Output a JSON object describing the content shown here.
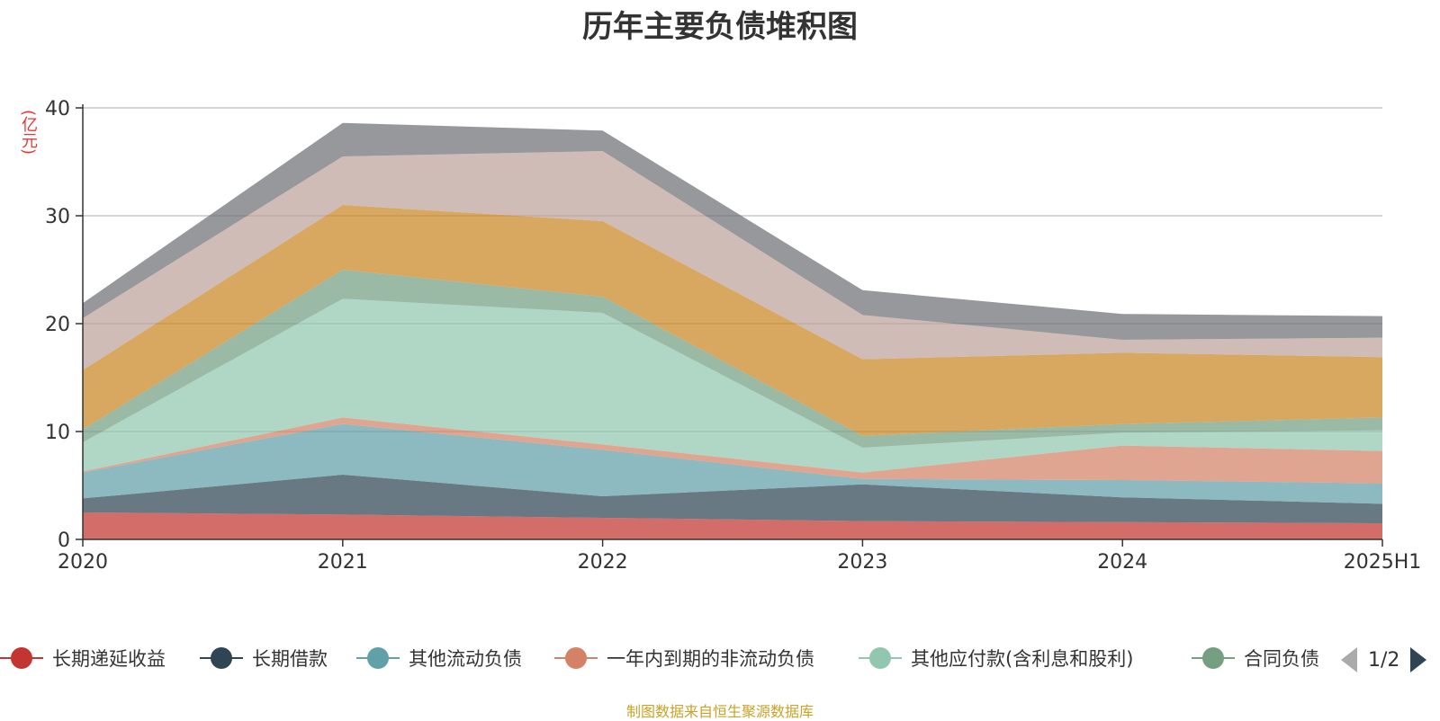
{
  "chart_data": {
    "type": "area",
    "title": "历年主要负债堆积图",
    "unit": "(亿元)",
    "x": [
      "2020",
      "2021",
      "2022",
      "2023",
      "2024",
      "2025H1"
    ],
    "yticks": [
      "0",
      "10",
      "20",
      "30",
      "40"
    ],
    "ylim": [
      0,
      40
    ],
    "grid": true,
    "stacked": true,
    "series": [
      {
        "name": "长期递延收益",
        "color": "#c23531",
        "values": [
          2.5,
          2.3,
          2.0,
          1.7,
          1.6,
          1.5
        ]
      },
      {
        "name": "长期借款",
        "color": "#2f4554",
        "values": [
          1.3,
          3.7,
          2.0,
          3.4,
          2.3,
          1.8
        ]
      },
      {
        "name": "其他流动负债",
        "color": "#61a0a8",
        "values": [
          2.4,
          4.7,
          4.3,
          0.5,
          1.6,
          1.9
        ]
      },
      {
        "name": "一年内到期的非流动负债",
        "color": "#d48265",
        "values": [
          0.1,
          0.6,
          0.5,
          0.6,
          3.2,
          3.0
        ]
      },
      {
        "name": "其他应付款(含利息和股利)",
        "color": "#91c7ae",
        "values": [
          2.7,
          11.0,
          12.2,
          2.3,
          1.2,
          1.9
        ]
      },
      {
        "name": "合同负债",
        "color": "#749f83",
        "values": [
          1.2,
          2.7,
          1.5,
          1.1,
          0.8,
          1.2
        ]
      },
      {
        "name": "",
        "color": "#ca8622",
        "values": [
          5.5,
          6.0,
          7.0,
          7.1,
          6.6,
          5.6
        ]
      },
      {
        "name": "",
        "color": "#bda29a",
        "values": [
          4.8,
          4.5,
          6.5,
          4.1,
          1.2,
          1.8
        ]
      },
      {
        "name": "",
        "color": "#6e7074",
        "values": [
          1.4,
          3.1,
          1.9,
          2.3,
          2.4,
          2.0
        ]
      }
    ]
  },
  "legend": {
    "page": "1/2",
    "items": [
      "长期递延收益",
      "长期借款",
      "其他流动负债",
      "一年内到期的非流动负债",
      "其他应付款(含利息和股利)",
      "合同负债"
    ]
  },
  "source": "制图数据来自恒生聚源数据库"
}
